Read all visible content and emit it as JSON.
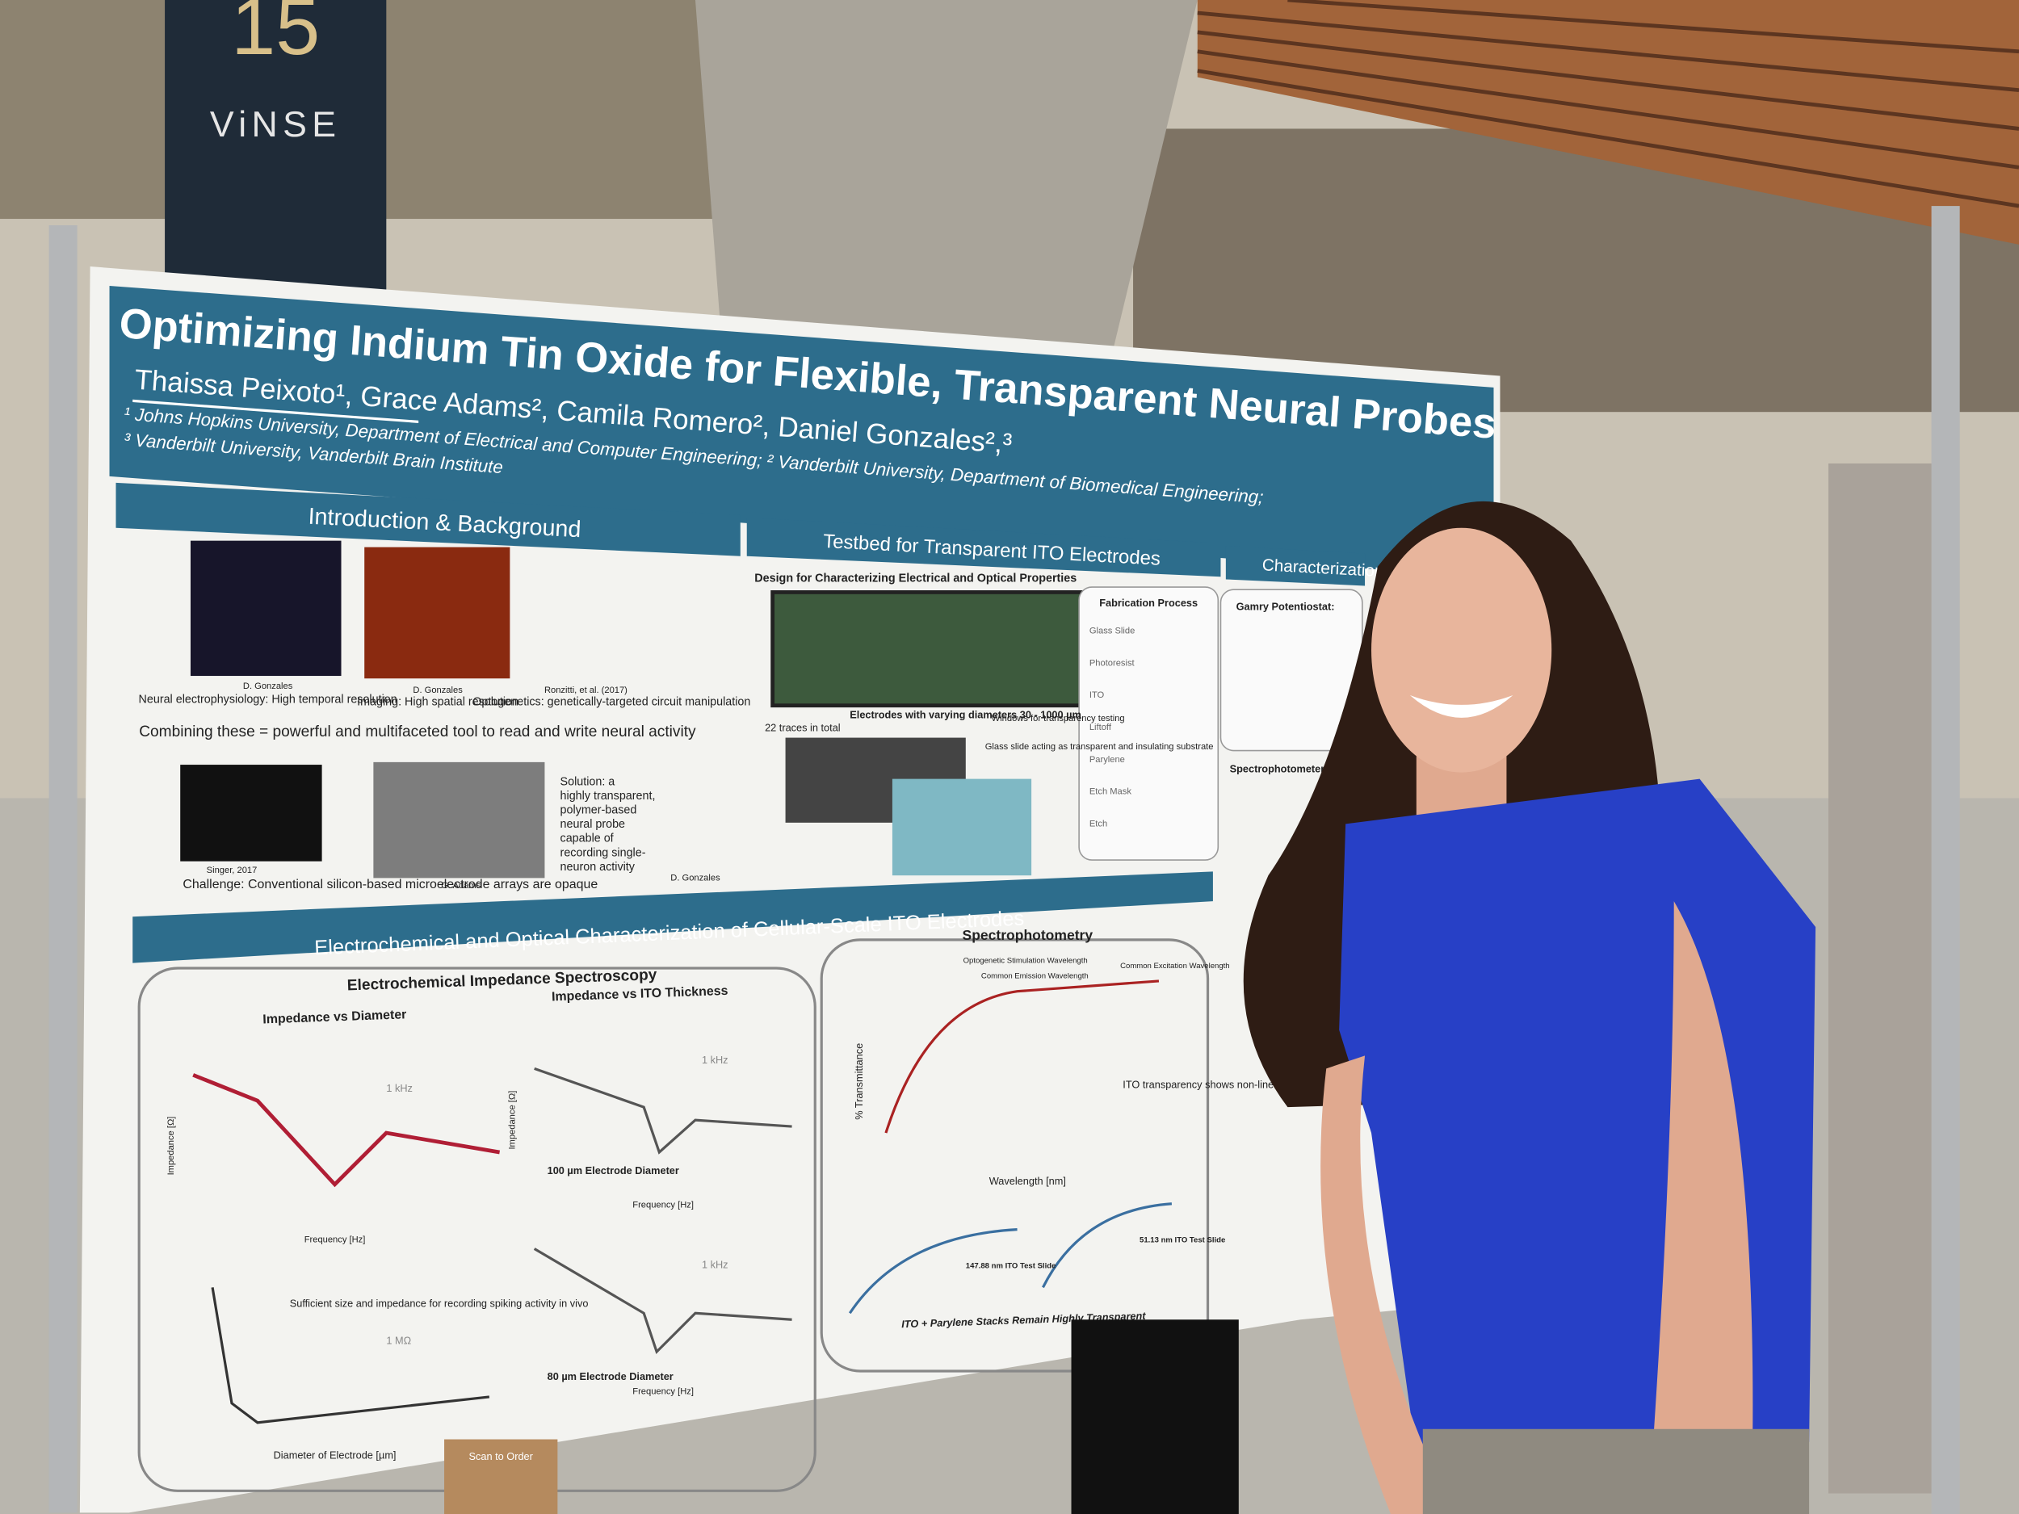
{
  "sign": {
    "number": "15",
    "label": "ViNSE"
  },
  "poster": {
    "title": "Optimizing Indium Tin Oxide for Flexible, Transparent Neural Probes",
    "authors": "Thaissa Peixoto¹, Grace Adams², Camila Romero², Daniel Gonzales²,³",
    "affiliations": [
      "¹ Johns Hopkins University, Department of Electrical and Computer Engineering; ² Vanderbilt University, Department of Biomedical Engineering;",
      "³ Vanderbilt University, Vanderbilt Brain Institute"
    ],
    "intro": {
      "title": "Introduction & Background",
      "credits": [
        "D. Gonzales",
        "D. Gonzales",
        "Ronzitti, et al. (2017)",
        "Singer, 2017",
        "G. Adams",
        "D. Gonzales"
      ],
      "electrophysiology": "Neural electrophysiology: High temporal resolution",
      "imaging": "Imaging: High spatial resolution",
      "optogenetics": "Optogenetics: genetically-targeted circuit manipulation",
      "combining": "Combining these = powerful and multifaceted tool to read and write neural activity",
      "challenge": "Challenge: Conventional silicon-based microelectrode arrays are opaque",
      "solution": [
        "Solution: a",
        "highly transparent,",
        "polymer-based",
        "neural probe",
        "capable of",
        "recording single-",
        "neuron activity"
      ]
    },
    "testbed": {
      "title": "Testbed for Transparent ITO Electrodes",
      "design": "Design for Characterizing Electrical and Optical Properties",
      "traces": "22 traces in total",
      "electrodes": "Electrodes with varying diameters 30 - 1000 µm",
      "windows": "Windows for transparency testing",
      "glass": "Glass slide acting as transparent and insulating substrate",
      "fabrication": {
        "title": "Fabrication Process",
        "steps": [
          "Glass Slide",
          "Photoresist",
          "ITO",
          "Liftoff",
          "Parylene",
          "Etch Mask",
          "Etch"
        ]
      }
    },
    "characterization": {
      "title": "Characterization",
      "potentiostat": "Gamry Potentiostat:",
      "spectrophotometer": "Spectrophotometer"
    },
    "results": {
      "title": "Electrochemical and Optical Characterization of Cellular-Scale ITO Electrodes",
      "eis": "Electrochemical Impedance Spectroscopy",
      "diameter": "Impedance vs Diameter",
      "thickness": "Impedance vs ITO Thickness",
      "khz": "1 kHz",
      "d100": "100 µm Electrode Diameter",
      "d80": "80 µm Electrode Diameter",
      "frequency": "Frequency [Hz]",
      "impedance": "Impedance [Ω]",
      "sufficient": "Sufficient size and impedance for recording spiking activity in vivo",
      "mohm": "1 MΩ",
      "diamAxis": "Diameter of Electrode [µm]",
      "spectro": "Spectrophotometry",
      "opto": "Optogenetic Stimulation Wavelength",
      "emission": "Common Emission Wavelength",
      "excitation": "Common Excitation Wavelength",
      "transparency": "ITO transparency shows non-linear relationship with increasing thickness",
      "wavelength": "Wavelength [nm]",
      "transmittance": "% Transmittance",
      "slide147": "147.88 nm ITO Test Slide",
      "slide51": "51.13 nm ITO Test Slide",
      "stacks": "ITO + Parylene Stacks Remain Highly Transparent"
    }
  },
  "bag": "Scan to Order"
}
